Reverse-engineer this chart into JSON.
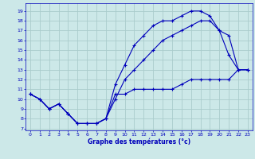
{
  "title": "Graphe des températures (°c)",
  "xlim": [
    -0.5,
    23.5
  ],
  "ylim": [
    6.8,
    19.8
  ],
  "xticks": [
    0,
    1,
    2,
    3,
    4,
    5,
    6,
    7,
    8,
    9,
    10,
    11,
    12,
    13,
    14,
    15,
    16,
    17,
    18,
    19,
    20,
    21,
    22,
    23
  ],
  "yticks": [
    7,
    8,
    9,
    10,
    11,
    12,
    13,
    14,
    15,
    16,
    17,
    18,
    19
  ],
  "bg_color": "#cce8e8",
  "grid_color": "#aacccc",
  "line_color": "#0000bb",
  "line1_x": [
    0,
    1,
    2,
    3,
    4,
    5,
    6,
    7,
    8,
    9,
    10,
    11,
    12,
    13,
    14,
    15,
    16,
    17,
    18,
    19,
    20,
    21,
    22,
    23
  ],
  "line1_y": [
    10.5,
    10.0,
    9.0,
    9.5,
    8.5,
    7.5,
    7.5,
    7.5,
    8.0,
    10.5,
    10.5,
    11.0,
    11.0,
    11.0,
    11.0,
    11.0,
    11.5,
    12.0,
    12.0,
    12.0,
    12.0,
    12.0,
    13.0,
    13.0
  ],
  "line2_x": [
    0,
    1,
    2,
    3,
    4,
    5,
    6,
    7,
    8,
    9,
    10,
    11,
    12,
    13,
    14,
    15,
    16,
    17,
    18,
    19,
    20,
    21,
    22,
    23
  ],
  "line2_y": [
    10.5,
    10.0,
    9.0,
    9.5,
    8.5,
    7.5,
    7.5,
    7.5,
    8.0,
    11.5,
    13.5,
    15.5,
    16.5,
    17.5,
    18.0,
    18.0,
    18.5,
    19.0,
    19.0,
    18.5,
    17.0,
    14.5,
    13.0,
    13.0
  ],
  "line3_x": [
    0,
    1,
    2,
    3,
    4,
    5,
    6,
    7,
    8,
    9,
    10,
    11,
    12,
    13,
    14,
    15,
    16,
    17,
    18,
    19,
    20,
    21,
    22,
    23
  ],
  "line3_y": [
    10.5,
    10.0,
    9.0,
    9.5,
    8.5,
    7.5,
    7.5,
    7.5,
    8.0,
    10.0,
    12.0,
    13.0,
    14.0,
    15.0,
    16.0,
    16.5,
    17.0,
    17.5,
    18.0,
    18.0,
    17.0,
    16.5,
    13.0,
    13.0
  ]
}
